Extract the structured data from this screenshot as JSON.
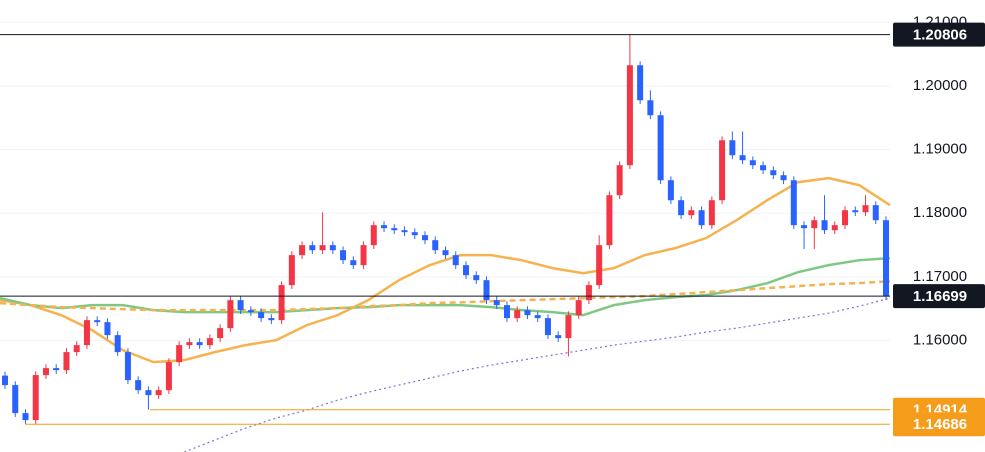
{
  "chart_data": {
    "type": "candlestick",
    "up_color": "#f23645",
    "down_color": "#2962ff",
    "ylim": [
      1.1425,
      1.2135
    ],
    "yticks": [
      {
        "value": 1.16,
        "label": "1.16000"
      },
      {
        "value": 1.17,
        "label": "1.17000"
      },
      {
        "value": 1.18,
        "label": "1.18000"
      },
      {
        "value": 1.19,
        "label": "1.19000"
      },
      {
        "value": 1.2,
        "label": "1.20000"
      },
      {
        "value": 1.21,
        "label": "1.21000"
      }
    ],
    "grid": true,
    "open": [
      1.1545,
      1.15301,
      1.14861,
      1.14751,
      1.15458,
      1.15568,
      1.15536,
      1.15819,
      1.15929,
      1.16321,
      1.1629,
      1.16086,
      1.15819,
      1.15379,
      1.15222,
      1.15144,
      1.15222,
      1.15662,
      1.15929,
      1.15976,
      1.15929,
      1.16039,
      1.16196,
      1.16635,
      1.16478,
      1.16447,
      1.16353,
      1.16321,
      1.16871,
      1.17342,
      1.17499,
      1.1742,
      1.17499,
      1.1742,
      1.17263,
      1.17185,
      1.17499,
      1.17813,
      1.17766,
      1.17734,
      1.17703,
      1.17656,
      1.17577,
      1.1742,
      1.17342,
      1.17185,
      1.17028,
      1.16949,
      1.16635,
      1.16557,
      1.16353,
      1.16478,
      1.164,
      1.16353,
      1.16086,
      1.16039,
      1.164,
      1.16635,
      1.16871,
      1.17499,
      1.18284,
      1.18755,
      1.20325,
      1.19775,
      1.1954,
      1.18519,
      1.18205,
      1.1797,
      1.18048,
      1.17813,
      1.18205,
      1.19147,
      1.18912,
      1.18833,
      1.18755,
      1.18676,
      1.18598,
      1.18519,
      1.17813,
      1.17766,
      1.17891,
      1.17734,
      1.17813,
      1.18048,
      1.18017,
      1.18127,
      1.17891
    ],
    "close": [
      1.15301,
      1.14861,
      1.14751,
      1.15458,
      1.15568,
      1.15536,
      1.15819,
      1.15929,
      1.16321,
      1.1629,
      1.16086,
      1.15819,
      1.15379,
      1.15222,
      1.15144,
      1.15222,
      1.15662,
      1.15929,
      1.15976,
      1.15929,
      1.16039,
      1.16196,
      1.16635,
      1.16478,
      1.16447,
      1.16353,
      1.16321,
      1.16871,
      1.17342,
      1.17499,
      1.1742,
      1.17499,
      1.1742,
      1.17263,
      1.17185,
      1.17499,
      1.17813,
      1.17766,
      1.17734,
      1.17703,
      1.17656,
      1.17577,
      1.1742,
      1.17342,
      1.17185,
      1.17028,
      1.16949,
      1.16635,
      1.16557,
      1.16353,
      1.16478,
      1.164,
      1.16353,
      1.16086,
      1.16039,
      1.164,
      1.16635,
      1.16871,
      1.17499,
      1.18284,
      1.18755,
      1.20325,
      1.19775,
      1.1954,
      1.18519,
      1.18205,
      1.1797,
      1.18048,
      1.17813,
      1.18205,
      1.19147,
      1.18912,
      1.18833,
      1.18755,
      1.18676,
      1.18598,
      1.18519,
      1.17813,
      1.17766,
      1.17891,
      1.17734,
      1.17813,
      1.18048,
      1.18017,
      1.18127,
      1.17891,
      1.16699
    ],
    "high": [
      1.1551,
      1.15361,
      1.14921,
      1.15518,
      1.15628,
      1.15628,
      1.15879,
      1.15989,
      1.16381,
      1.16381,
      1.1635,
      1.16146,
      1.15879,
      1.15439,
      1.15282,
      1.15282,
      1.15722,
      1.15989,
      1.16036,
      1.16036,
      1.16099,
      1.16256,
      1.16695,
      1.16695,
      1.16538,
      1.16507,
      1.16413,
      1.16931,
      1.17402,
      1.17559,
      1.17559,
      1.18014,
      1.17559,
      1.1748,
      1.17323,
      1.17559,
      1.17873,
      1.17873,
      1.17826,
      1.17794,
      1.17763,
      1.17716,
      1.17637,
      1.1748,
      1.17402,
      1.17245,
      1.17088,
      1.17009,
      1.16695,
      1.16617,
      1.16538,
      1.16538,
      1.1646,
      1.16413,
      1.16146,
      1.1646,
      1.16695,
      1.16931,
      1.17656,
      1.18344,
      1.18815,
      1.20806,
      1.20385,
      1.19932,
      1.196,
      1.18579,
      1.18265,
      1.18108,
      1.18108,
      1.18265,
      1.19207,
      1.19285,
      1.19285,
      1.18893,
      1.18815,
      1.18736,
      1.18658,
      1.18579,
      1.17873,
      1.17951,
      1.18284,
      1.17873,
      1.18108,
      1.18108,
      1.18284,
      1.18187,
      1.17951
    ],
    "low": [
      1.15241,
      1.14801,
      1.14686,
      1.14691,
      1.15398,
      1.15476,
      1.15476,
      1.15759,
      1.15869,
      1.1623,
      1.16026,
      1.15759,
      1.15319,
      1.15162,
      1.14914,
      1.15084,
      1.15162,
      1.15602,
      1.15869,
      1.15869,
      1.15869,
      1.15979,
      1.16136,
      1.16418,
      1.16387,
      1.16293,
      1.16261,
      1.16261,
      1.16811,
      1.17282,
      1.1736,
      1.1736,
      1.1736,
      1.17203,
      1.17125,
      1.17125,
      1.17439,
      1.17706,
      1.17674,
      1.17643,
      1.17596,
      1.17517,
      1.1736,
      1.17282,
      1.17125,
      1.16968,
      1.16889,
      1.16575,
      1.16497,
      1.16293,
      1.16293,
      1.1634,
      1.16293,
      1.16026,
      1.15979,
      1.1575,
      1.1634,
      1.16575,
      1.16811,
      1.17439,
      1.18224,
      1.18695,
      1.19715,
      1.1948,
      1.18459,
      1.18145,
      1.1791,
      1.1791,
      1.17753,
      1.17753,
      1.18145,
      1.18852,
      1.18773,
      1.18695,
      1.18616,
      1.18538,
      1.18459,
      1.17753,
      1.17439,
      1.17439,
      1.17674,
      1.17674,
      1.17753,
      1.17957,
      1.17957,
      1.17831,
      1.16639
    ],
    "series": [
      {
        "color": "#f7b24f",
        "style": "solid",
        "values": [
          1.16635,
          1.16557,
          1.164,
          1.16164,
          1.1585,
          1.15662,
          1.15693,
          1.15819,
          1.15929,
          1.16007,
          1.16243,
          1.164,
          1.16635,
          1.16949,
          1.17185,
          1.17342,
          1.17342,
          1.17263,
          1.17138,
          1.17059,
          1.17138,
          1.17342,
          1.17452,
          1.17609,
          1.17891,
          1.18205,
          1.18488,
          1.18551,
          1.18441,
          1.18127
        ]
      },
      {
        "color": "#81c784",
        "style": "solid",
        "values": [
          1.16667,
          1.16557,
          1.1651,
          1.16557,
          1.16557,
          1.16478,
          1.16447,
          1.16447,
          1.16447,
          1.16447,
          1.16478,
          1.1651,
          1.16525,
          1.16557,
          1.16557,
          1.16557,
          1.16525,
          1.16478,
          1.16447,
          1.164,
          1.16557,
          1.16635,
          1.16682,
          1.16714,
          1.16792,
          1.16902,
          1.17075,
          1.17185,
          1.17263,
          1.17295
        ]
      },
      {
        "color": "#f7b24f",
        "style": "dashed",
        "values": [
          1.16588,
          1.16557,
          1.16525,
          1.1651,
          1.16494,
          1.16478,
          1.16478,
          1.16478,
          1.16478,
          1.16478,
          1.16494,
          1.1651,
          1.16541,
          1.16557,
          1.16588,
          1.166,
          1.16619,
          1.16635,
          1.16651,
          1.16667,
          1.16682,
          1.16698,
          1.1673,
          1.16761,
          1.16792,
          1.16824,
          1.16855,
          1.16887,
          1.16902,
          1.16934
        ]
      },
      {
        "color": "#7e72d8",
        "style": "dotted",
        "values": [
          null,
          null,
          null,
          null,
          null,
          null,
          1.14249,
          1.14437,
          1.14626,
          1.14783,
          1.14909,
          1.15065,
          1.1519,
          1.15301,
          1.15411,
          1.15521,
          1.15615,
          1.15693,
          1.15772,
          1.1585,
          1.15929,
          1.15992,
          1.16054,
          1.16133,
          1.16196,
          1.16274,
          1.16353,
          1.16431,
          1.16541,
          1.16667
        ]
      }
    ],
    "levels": [
      {
        "value": 1.20806,
        "color": "#131722"
      },
      {
        "value": 1.16699,
        "color": "#131722"
      },
      {
        "value": 1.14914,
        "color": "#f59d1b"
      },
      {
        "value": 1.14686,
        "color": "#f59d1b"
      }
    ]
  }
}
